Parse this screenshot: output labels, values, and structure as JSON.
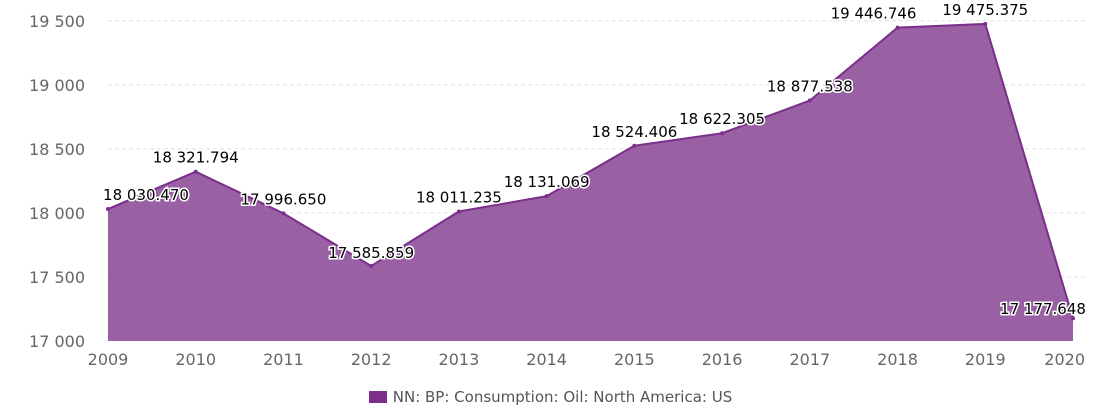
{
  "chart_data": {
    "type": "area",
    "title": "",
    "xlabel": "",
    "ylabel": "",
    "categories": [
      "2009",
      "2010",
      "2011",
      "2012",
      "2013",
      "2014",
      "2015",
      "2016",
      "2017",
      "2018",
      "2019",
      "2020"
    ],
    "series": [
      {
        "name": "NN: BP: Consumption: Oil: North America: US",
        "values": [
          18030.47,
          18321.794,
          17996.65,
          17585.859,
          18011.235,
          18131.069,
          18524.406,
          18622.305,
          18877.538,
          19446.746,
          19475.375,
          17177.648
        ],
        "labels": [
          "18 030.470",
          "18 321.794",
          "17 996.650",
          "17 585.859",
          "18 011.235",
          "18 131.069",
          "18 524.406",
          "18 622.305",
          "18 877.538",
          "19 446.746",
          "19 475.375",
          "17 177.648"
        ]
      }
    ],
    "ylim": [
      17000,
      19600
    ],
    "yticks": [
      17000,
      17500,
      18000,
      18500,
      19000,
      19500
    ],
    "ytick_labels": [
      "17 000",
      "17 500",
      "18 000",
      "18 500",
      "19 000",
      "19 500"
    ],
    "grid": true,
    "legend": "bottom-center",
    "colors": {
      "fill": "#8B4A97",
      "line": "#7B2F8B",
      "swatch": "#7B2F8B",
      "grid": "#e0e0e0"
    }
  }
}
